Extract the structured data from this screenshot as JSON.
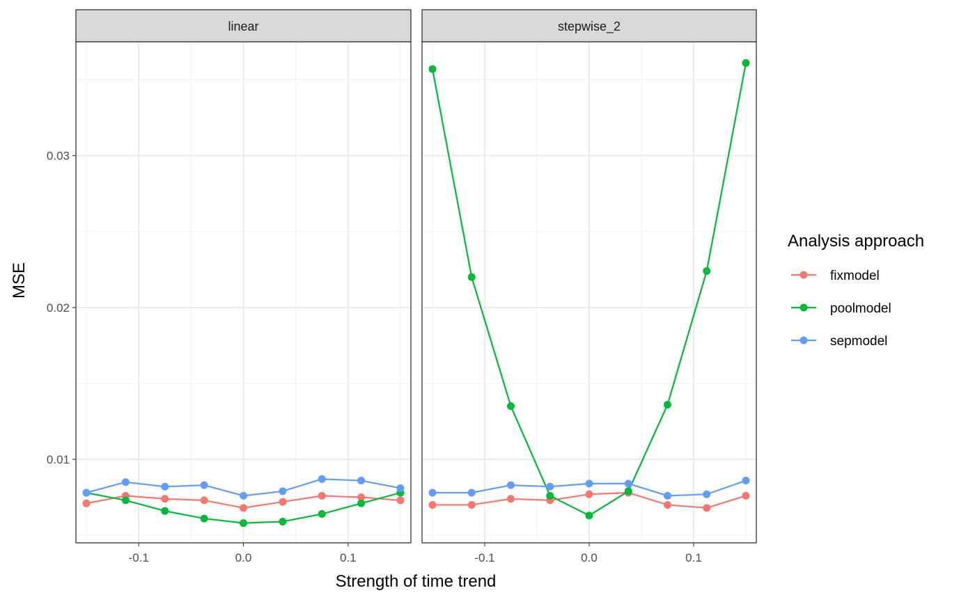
{
  "chart_data": {
    "type": "line",
    "xlabel": "Strength of time trend",
    "ylabel": "MSE",
    "xlim": [
      -0.16,
      0.16
    ],
    "ylim": [
      0.0045,
      0.0375
    ],
    "x_ticks": [
      -0.1,
      0.0,
      0.1
    ],
    "x_tick_labels": [
      "-0.1",
      "0.0",
      "0.1"
    ],
    "y_ticks": [
      0.01,
      0.02,
      0.03
    ],
    "y_tick_labels": [
      "0.01",
      "0.02",
      "0.03"
    ],
    "grid": true,
    "legend": {
      "title": "Analysis approach",
      "placement": "right",
      "entries": [
        "fixmodel",
        "poolmodel",
        "sepmodel"
      ]
    },
    "colors": {
      "fixmodel": "#F8766D",
      "poolmodel": "#00BA38",
      "sepmodel": "#619CFF"
    },
    "panels": [
      {
        "title": "linear",
        "x": [
          -0.15,
          -0.1125,
          -0.075,
          -0.0375,
          0.0,
          0.0375,
          0.075,
          0.1125,
          0.15
        ],
        "series": [
          {
            "name": "fixmodel",
            "values": [
              0.0071,
              0.0076,
              0.0074,
              0.0073,
              0.0068,
              0.0072,
              0.0076,
              0.0075,
              0.0073
            ]
          },
          {
            "name": "poolmodel",
            "values": [
              0.0078,
              0.0073,
              0.0066,
              0.0061,
              0.0058,
              0.0059,
              0.0064,
              0.0071,
              0.0078
            ]
          },
          {
            "name": "sepmodel",
            "values": [
              0.0078,
              0.0085,
              0.0082,
              0.0083,
              0.0076,
              0.0079,
              0.0087,
              0.0086,
              0.0081
            ]
          }
        ]
      },
      {
        "title": "stepwise_2",
        "x": [
          -0.15,
          -0.1125,
          -0.075,
          -0.0375,
          0.0,
          0.0375,
          0.075,
          0.1125,
          0.15
        ],
        "series": [
          {
            "name": "fixmodel",
            "values": [
              0.007,
              0.007,
              0.0074,
              0.0073,
              0.0077,
              0.0078,
              0.007,
              0.0068,
              0.0076
            ]
          },
          {
            "name": "poolmodel",
            "values": [
              0.0357,
              0.022,
              0.0135,
              0.0076,
              0.0063,
              0.0079,
              0.0136,
              0.0224,
              0.0361
            ]
          },
          {
            "name": "sepmodel",
            "values": [
              0.0078,
              0.0078,
              0.0083,
              0.0082,
              0.0084,
              0.0084,
              0.0076,
              0.0077,
              0.0086
            ]
          }
        ]
      }
    ]
  }
}
